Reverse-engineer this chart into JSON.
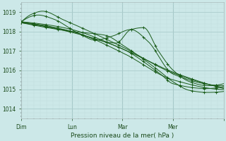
{
  "xlabel": "Pression niveau de la mer( hPa )",
  "bg_color": "#cce8e8",
  "grid_major_color": "#aacccc",
  "grid_minor_color": "#c0dddd",
  "line_color": "#1a5c1a",
  "ylim": [
    1013.5,
    1019.5
  ],
  "xlim": [
    0,
    96
  ],
  "yticks": [
    1014,
    1015,
    1016,
    1017,
    1018,
    1019
  ],
  "xtick_positions": [
    0,
    24,
    48,
    72,
    96
  ],
  "xtick_labels": [
    "Dim",
    "Lun",
    "Mar",
    "Mer",
    ""
  ]
}
